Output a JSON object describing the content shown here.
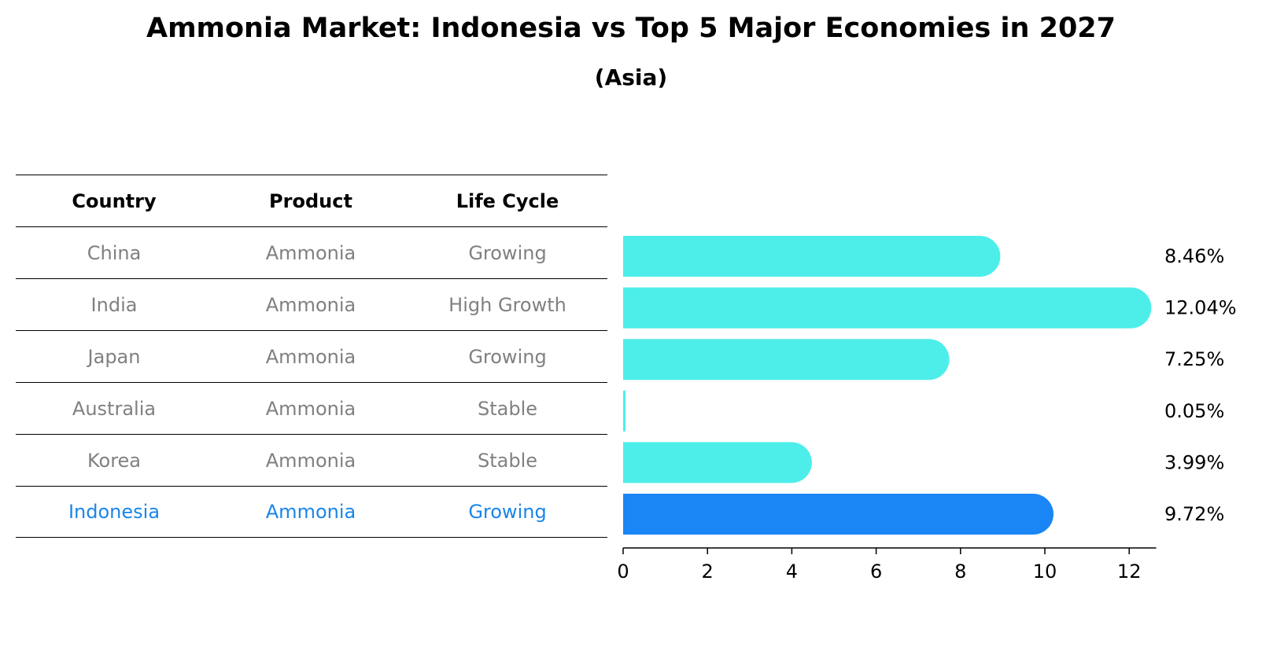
{
  "chart_data": {
    "type": "bar",
    "orientation": "horizontal",
    "title": "Ammonia Market: Indonesia vs Top 5 Major Economies in 2027",
    "subtitle": "(Asia)",
    "categories": [
      "China",
      "India",
      "Japan",
      "Australia",
      "Korea",
      "Indonesia"
    ],
    "values": [
      8.46,
      12.04,
      7.25,
      0.05,
      3.99,
      9.72
    ],
    "value_labels": [
      "8.46%",
      "12.04%",
      "7.25%",
      "0.05%",
      "3.99%",
      "9.72%"
    ],
    "highlight": "Indonesia",
    "xlim": [
      0,
      12.64
    ],
    "xticks": [
      0,
      2,
      4,
      6,
      8,
      10,
      12
    ],
    "xlabel": "",
    "ylabel": "",
    "colors": {
      "default": "#4deeea",
      "highlight": "#1a85f5"
    }
  },
  "table": {
    "headers": [
      "Country",
      "Product",
      "Life Cycle"
    ],
    "rows": [
      [
        "China",
        "Ammonia",
        "Growing"
      ],
      [
        "India",
        "Ammonia",
        "High Growth"
      ],
      [
        "Japan",
        "Ammonia",
        "Growing"
      ],
      [
        "Australia",
        "Ammonia",
        "Stable"
      ],
      [
        "Korea",
        "Ammonia",
        "Stable"
      ],
      [
        "Indonesia",
        "Ammonia",
        "Growing"
      ]
    ]
  }
}
